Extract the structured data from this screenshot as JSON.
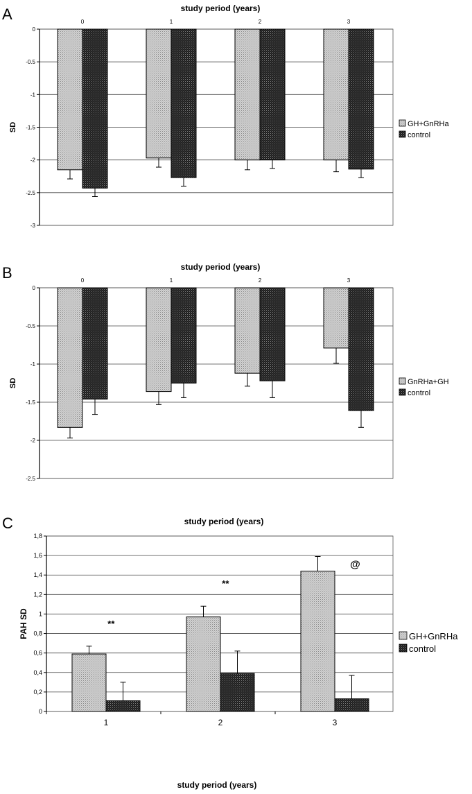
{
  "colors": {
    "treated_fill": "#c4c4c4",
    "control_fill": "#2e2e2e",
    "grid": "#000000"
  },
  "chart_data": [
    {
      "panel_label": "A",
      "type": "bar",
      "title": "study period (years)",
      "ylabel": "SD",
      "xlabel": "",
      "ylim": [
        -3,
        0
      ],
      "yticks": [
        "0",
        "-0.5",
        "-1",
        "-1.5",
        "-2",
        "-2.5",
        "-3"
      ],
      "tick_values": [
        0,
        -0.5,
        -1,
        -1.5,
        -2,
        -2.5,
        -3
      ],
      "categories": [
        "0",
        "1",
        "2",
        "3"
      ],
      "x_axis_position": "top",
      "grid": true,
      "legend_position": "right",
      "series": [
        {
          "name": "GH+GnRHa",
          "values": [
            -2.15,
            -1.97,
            -2.0,
            -2.0
          ],
          "errors": [
            0.14,
            0.14,
            0.15,
            0.18
          ]
        },
        {
          "name": "control",
          "values": [
            -2.43,
            -2.27,
            -2.0,
            -2.14
          ],
          "errors": [
            0.13,
            0.13,
            0.13,
            0.13
          ]
        }
      ],
      "annotations": []
    },
    {
      "panel_label": "B",
      "type": "bar",
      "title": "study period (years)",
      "ylabel": "SD",
      "xlabel": "",
      "ylim": [
        -2.5,
        0
      ],
      "yticks": [
        "0",
        "-0.5",
        "-1",
        "-1.5",
        "-2",
        "-2.5"
      ],
      "tick_values": [
        0,
        -0.5,
        -1,
        -1.5,
        -2,
        -2.5
      ],
      "categories": [
        "0",
        "1",
        "2",
        "3"
      ],
      "x_axis_position": "top",
      "grid": true,
      "legend_position": "right",
      "series": [
        {
          "name": "GnRHa+GH",
          "values": [
            -1.83,
            -1.36,
            -1.12,
            -0.79
          ],
          "errors": [
            0.14,
            0.17,
            0.17,
            0.2
          ]
        },
        {
          "name": "control",
          "values": [
            -1.46,
            -1.25,
            -1.22,
            -1.61
          ],
          "errors": [
            0.2,
            0.19,
            0.22,
            0.22
          ]
        }
      ],
      "annotations": []
    },
    {
      "panel_label": "C",
      "type": "bar",
      "title": "study period (years)",
      "ylabel": "PAH SD",
      "xlabel": "study period (years)",
      "ylim": [
        0,
        1.8
      ],
      "yticks": [
        "0",
        "0,2",
        "0,4",
        "0,6",
        "0,8",
        "1",
        "1,2",
        "1,4",
        "1,6",
        "1,8"
      ],
      "tick_values": [
        0,
        0.2,
        0.4,
        0.6,
        0.8,
        1.0,
        1.2,
        1.4,
        1.6,
        1.8
      ],
      "categories": [
        "1",
        "2",
        "3"
      ],
      "x_axis_position": "bottom",
      "grid": true,
      "legend_position": "right",
      "series": [
        {
          "name": "GH+GnRHa",
          "values": [
            0.59,
            0.97,
            1.44
          ],
          "errors": [
            0.08,
            0.11,
            0.15
          ]
        },
        {
          "name": "control",
          "values": [
            0.11,
            0.39,
            0.13
          ],
          "errors": [
            0.19,
            0.23,
            0.24
          ]
        }
      ],
      "annotations": [
        {
          "text": "**",
          "category": 0
        },
        {
          "text": "**",
          "category": 1
        },
        {
          "text": "@",
          "category": 2
        }
      ]
    }
  ]
}
